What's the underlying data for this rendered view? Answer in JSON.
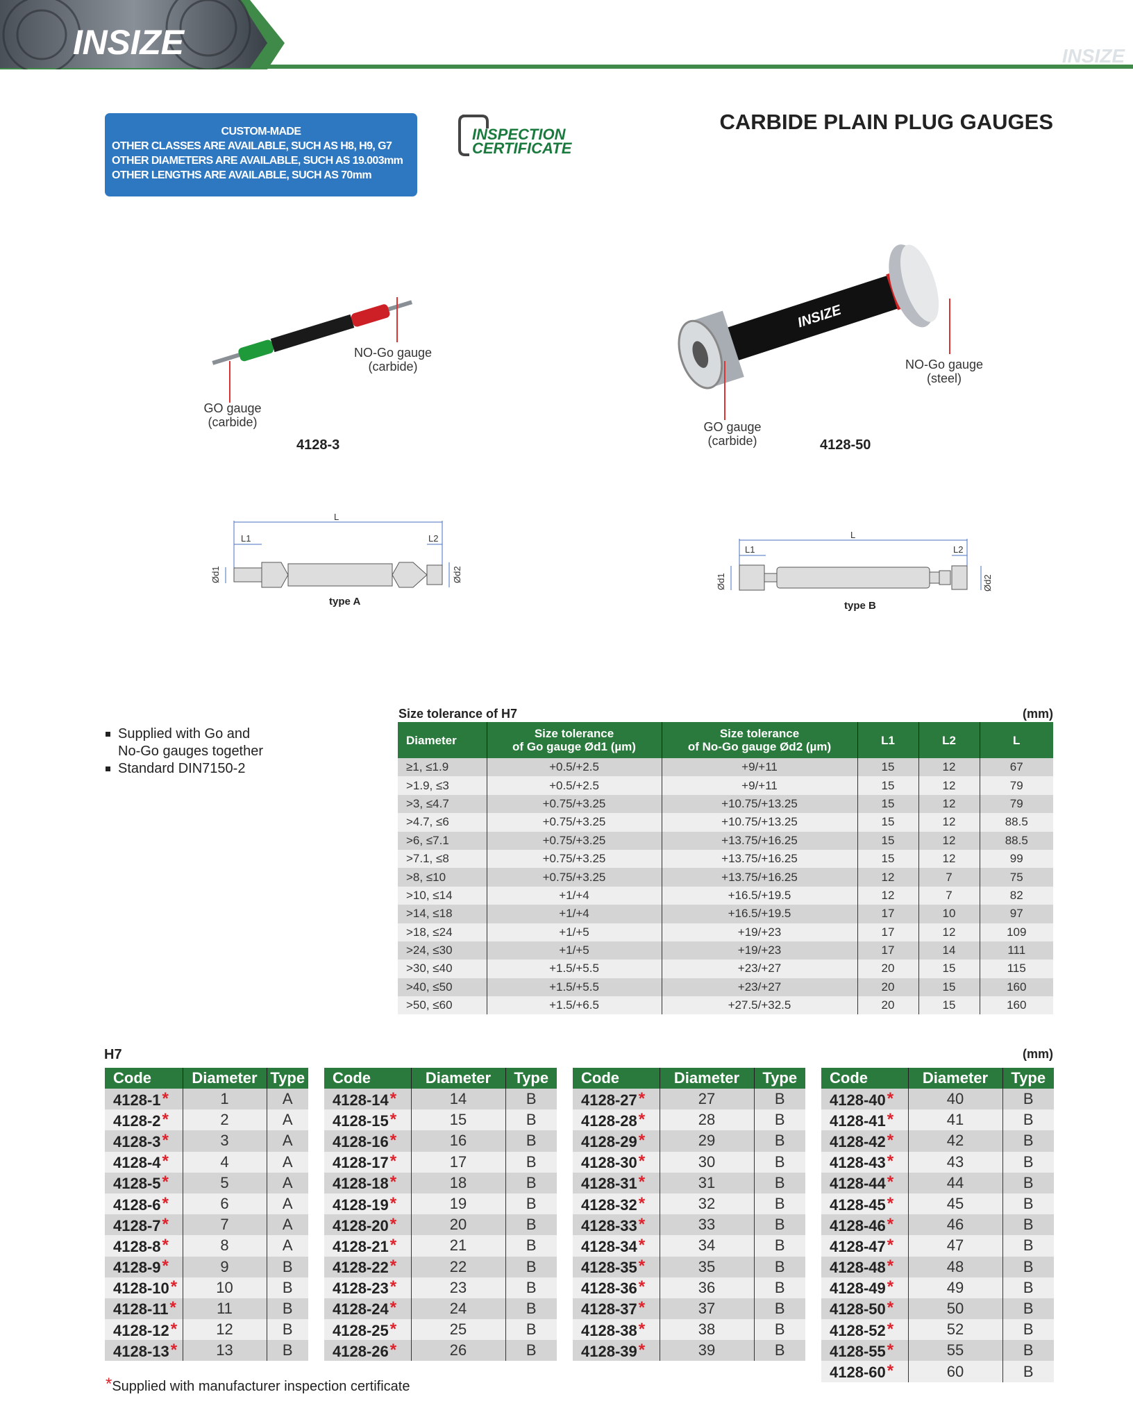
{
  "header": {
    "logo": "INSIZE",
    "watermark_logo": "INSIZE",
    "accent": "#3f8a48"
  },
  "custom_box": {
    "title": "CUSTOM-MADE",
    "lines": [
      "OTHER CLASSES ARE AVAILABLE, SUCH AS H8, H9, G7",
      "OTHER DIAMETERS ARE AVAILABLE, SUCH AS 19.003mm",
      "OTHER LENGTHS ARE AVAILABLE, SUCH AS 70mm"
    ],
    "color": "#2e78c2"
  },
  "certificate": {
    "line1": "INSPECTION",
    "line2": "CERTIFICATE",
    "color": "#1a7a3e"
  },
  "page_title": "CARBIDE PLAIN PLUG GAUGES",
  "products": [
    {
      "model": "4128-3",
      "go_label": [
        "GO gauge",
        "(carbide)"
      ],
      "nogo_label": [
        "NO-Go gauge",
        "(carbide)"
      ]
    },
    {
      "model": "4128-50",
      "go_label": [
        "GO gauge",
        "(carbide)"
      ],
      "nogo_label": [
        "NO-Go gauge",
        "(steel)"
      ]
    }
  ],
  "diagrams": [
    {
      "caption": "type A",
      "labels": {
        "L": "L",
        "L1": "L1",
        "L2": "L2",
        "d1": "Ød1",
        "d2": "Ød2"
      }
    },
    {
      "caption": "type B",
      "labels": {
        "L": "L",
        "L1": "L1",
        "L2": "L2",
        "d1": "Ød1",
        "d2": "Ød2"
      }
    }
  ],
  "features": [
    "Supplied with Go and",
    "No-Go gauges together",
    "Standard DIN7150-2"
  ],
  "tolerance_table": {
    "title": "Size tolerance of H7",
    "unit": "(mm)",
    "headers": [
      "Diameter",
      "Size tolerance\nof Go gauge Ød1 (µm)",
      "Size tolerance\nof No-Go gauge Ød2 (µm)",
      "L1",
      "L2",
      "L"
    ],
    "header_lines": [
      [
        "Diameter"
      ],
      [
        "Size tolerance",
        "of Go gauge Ød1 (µm)"
      ],
      [
        "Size tolerance",
        "of No-Go gauge Ød2 (µm)"
      ],
      [
        "L1"
      ],
      [
        "L2"
      ],
      [
        "L"
      ]
    ],
    "rows": [
      [
        "≥1, ≤1.9",
        "+0.5/+2.5",
        "+9/+11",
        "15",
        "12",
        "67"
      ],
      [
        ">1.9, ≤3",
        "+0.5/+2.5",
        "+9/+11",
        "15",
        "12",
        "79"
      ],
      [
        ">3, ≤4.7",
        "+0.75/+3.25",
        "+10.75/+13.25",
        "15",
        "12",
        "79"
      ],
      [
        ">4.7, ≤6",
        "+0.75/+3.25",
        "+10.75/+13.25",
        "15",
        "12",
        "88.5"
      ],
      [
        ">6, ≤7.1",
        "+0.75/+3.25",
        "+13.75/+16.25",
        "15",
        "12",
        "88.5"
      ],
      [
        ">7.1, ≤8",
        "+0.75/+3.25",
        "+13.75/+16.25",
        "15",
        "12",
        "99"
      ],
      [
        ">8, ≤10",
        "+0.75/+3.25",
        "+13.75/+16.25",
        "12",
        "7",
        "75"
      ],
      [
        ">10, ≤14",
        "+1/+4",
        "+16.5/+19.5",
        "12",
        "7",
        "82"
      ],
      [
        ">14, ≤18",
        "+1/+4",
        "+16.5/+19.5",
        "17",
        "10",
        "97"
      ],
      [
        ">18, ≤24",
        "+1/+5",
        "+19/+23",
        "17",
        "12",
        "109"
      ],
      [
        ">24, ≤30",
        "+1/+5",
        "+19/+23",
        "17",
        "14",
        "111"
      ],
      [
        ">30, ≤40",
        "+1.5/+5.5",
        "+23/+27",
        "20",
        "15",
        "115"
      ],
      [
        ">40, ≤50",
        "+1.5/+5.5",
        "+23/+27",
        "20",
        "15",
        "160"
      ],
      [
        ">50, ≤60",
        "+1.5/+6.5",
        "+27.5/+32.5",
        "20",
        "15",
        "160"
      ]
    ]
  },
  "h7": {
    "title": "H7",
    "unit": "(mm)",
    "headers": [
      "Code",
      "Diameter",
      "Type"
    ],
    "star": "*",
    "tables": [
      [
        [
          "4128-1",
          "1",
          "A"
        ],
        [
          "4128-2",
          "2",
          "A"
        ],
        [
          "4128-3",
          "3",
          "A"
        ],
        [
          "4128-4",
          "4",
          "A"
        ],
        [
          "4128-5",
          "5",
          "A"
        ],
        [
          "4128-6",
          "6",
          "A"
        ],
        [
          "4128-7",
          "7",
          "A"
        ],
        [
          "4128-8",
          "8",
          "A"
        ],
        [
          "4128-9",
          "9",
          "B"
        ],
        [
          "4128-10",
          "10",
          "B"
        ],
        [
          "4128-11",
          "11",
          "B"
        ],
        [
          "4128-12",
          "12",
          "B"
        ],
        [
          "4128-13",
          "13",
          "B"
        ]
      ],
      [
        [
          "4128-14",
          "14",
          "B"
        ],
        [
          "4128-15",
          "15",
          "B"
        ],
        [
          "4128-16",
          "16",
          "B"
        ],
        [
          "4128-17",
          "17",
          "B"
        ],
        [
          "4128-18",
          "18",
          "B"
        ],
        [
          "4128-19",
          "19",
          "B"
        ],
        [
          "4128-20",
          "20",
          "B"
        ],
        [
          "4128-21",
          "21",
          "B"
        ],
        [
          "4128-22",
          "22",
          "B"
        ],
        [
          "4128-23",
          "23",
          "B"
        ],
        [
          "4128-24",
          "24",
          "B"
        ],
        [
          "4128-25",
          "25",
          "B"
        ],
        [
          "4128-26",
          "26",
          "B"
        ]
      ],
      [
        [
          "4128-27",
          "27",
          "B"
        ],
        [
          "4128-28",
          "28",
          "B"
        ],
        [
          "4128-29",
          "29",
          "B"
        ],
        [
          "4128-30",
          "30",
          "B"
        ],
        [
          "4128-31",
          "31",
          "B"
        ],
        [
          "4128-32",
          "32",
          "B"
        ],
        [
          "4128-33",
          "33",
          "B"
        ],
        [
          "4128-34",
          "34",
          "B"
        ],
        [
          "4128-35",
          "35",
          "B"
        ],
        [
          "4128-36",
          "36",
          "B"
        ],
        [
          "4128-37",
          "37",
          "B"
        ],
        [
          "4128-38",
          "38",
          "B"
        ],
        [
          "4128-39",
          "39",
          "B"
        ]
      ],
      [
        [
          "4128-40",
          "40",
          "B"
        ],
        [
          "4128-41",
          "41",
          "B"
        ],
        [
          "4128-42",
          "42",
          "B"
        ],
        [
          "4128-43",
          "43",
          "B"
        ],
        [
          "4128-44",
          "44",
          "B"
        ],
        [
          "4128-45",
          "45",
          "B"
        ],
        [
          "4128-46",
          "46",
          "B"
        ],
        [
          "4128-47",
          "47",
          "B"
        ],
        [
          "4128-48",
          "48",
          "B"
        ],
        [
          "4128-49",
          "49",
          "B"
        ],
        [
          "4128-50",
          "50",
          "B"
        ],
        [
          "4128-52",
          "52",
          "B"
        ],
        [
          "4128-55",
          "55",
          "B"
        ],
        [
          "4128-60",
          "60",
          "B"
        ]
      ]
    ]
  },
  "footnote": "Supplied with manufacturer inspection certificate"
}
